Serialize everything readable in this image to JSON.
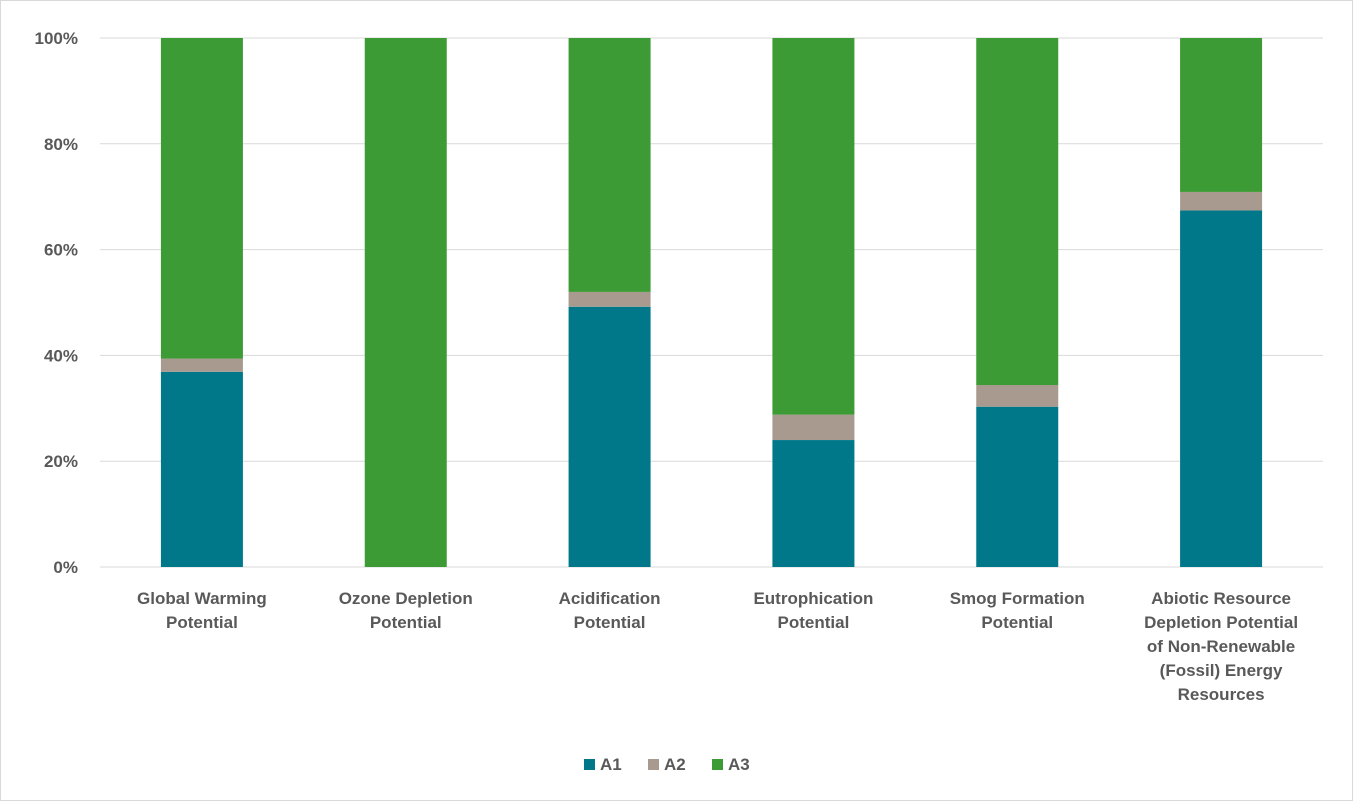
{
  "chart_data": {
    "type": "bar",
    "stacked": true,
    "percent": true,
    "title": "",
    "xlabel": "",
    "ylabel": "",
    "ylim": [
      0,
      100
    ],
    "yticks": [
      "0%",
      "20%",
      "40%",
      "60%",
      "80%",
      "100%"
    ],
    "grid": true,
    "legend_position": "bottom",
    "categories": [
      [
        "Global Warming",
        "Potential"
      ],
      [
        "Ozone Depletion",
        "Potential"
      ],
      [
        "Acidification",
        "Potential"
      ],
      [
        "Eutrophication",
        "Potential"
      ],
      [
        "Smog Formation",
        "Potential"
      ],
      [
        "Abiotic Resource",
        "Depletion Potential",
        "of Non-Renewable",
        "(Fossil) Energy",
        "Resources"
      ]
    ],
    "series": [
      {
        "name": "A1",
        "color": "#00788a",
        "values": [
          36.9,
          0,
          49.2,
          24.0,
          30.3,
          67.4
        ]
      },
      {
        "name": "A2",
        "color": "#a89a8e",
        "values": [
          2.5,
          0,
          2.8,
          4.8,
          4.1,
          3.5
        ]
      },
      {
        "name": "A3",
        "color": "#3d9b35",
        "values": [
          60.6,
          100,
          48.0,
          71.2,
          65.6,
          29.1
        ]
      }
    ]
  }
}
